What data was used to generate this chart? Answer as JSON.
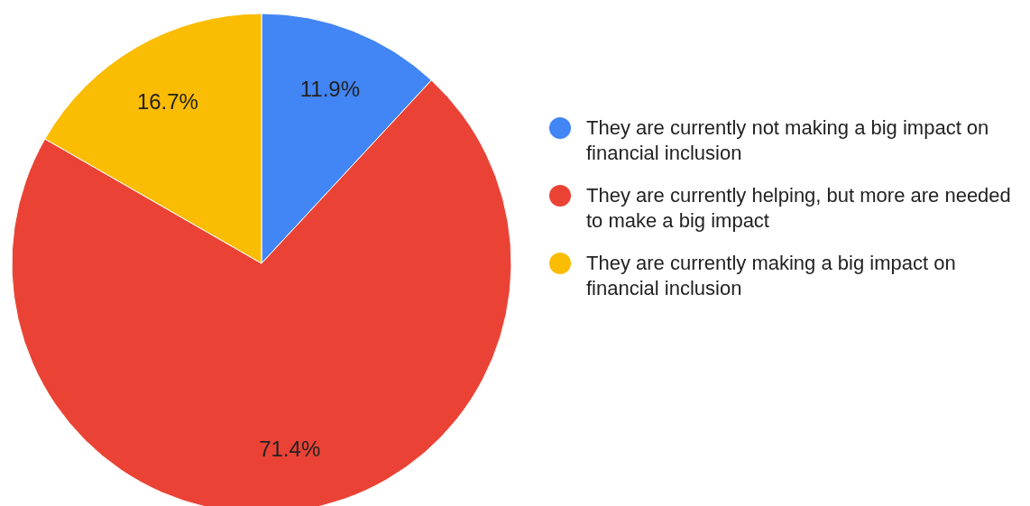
{
  "chart_data": {
    "type": "pie",
    "categories": [
      "They are currently not making a big impact on financial inclusion",
      "They are currently helping, but more are needed to make a big impact",
      "They are currently making a big impact on financial inclusion"
    ],
    "values": [
      11.9,
      71.4,
      16.7
    ],
    "value_labels": [
      "11.9%",
      "71.4%",
      "16.7%"
    ],
    "colors": [
      "#4285f4",
      "#ea4335",
      "#fbbc04"
    ],
    "legend": "right"
  }
}
